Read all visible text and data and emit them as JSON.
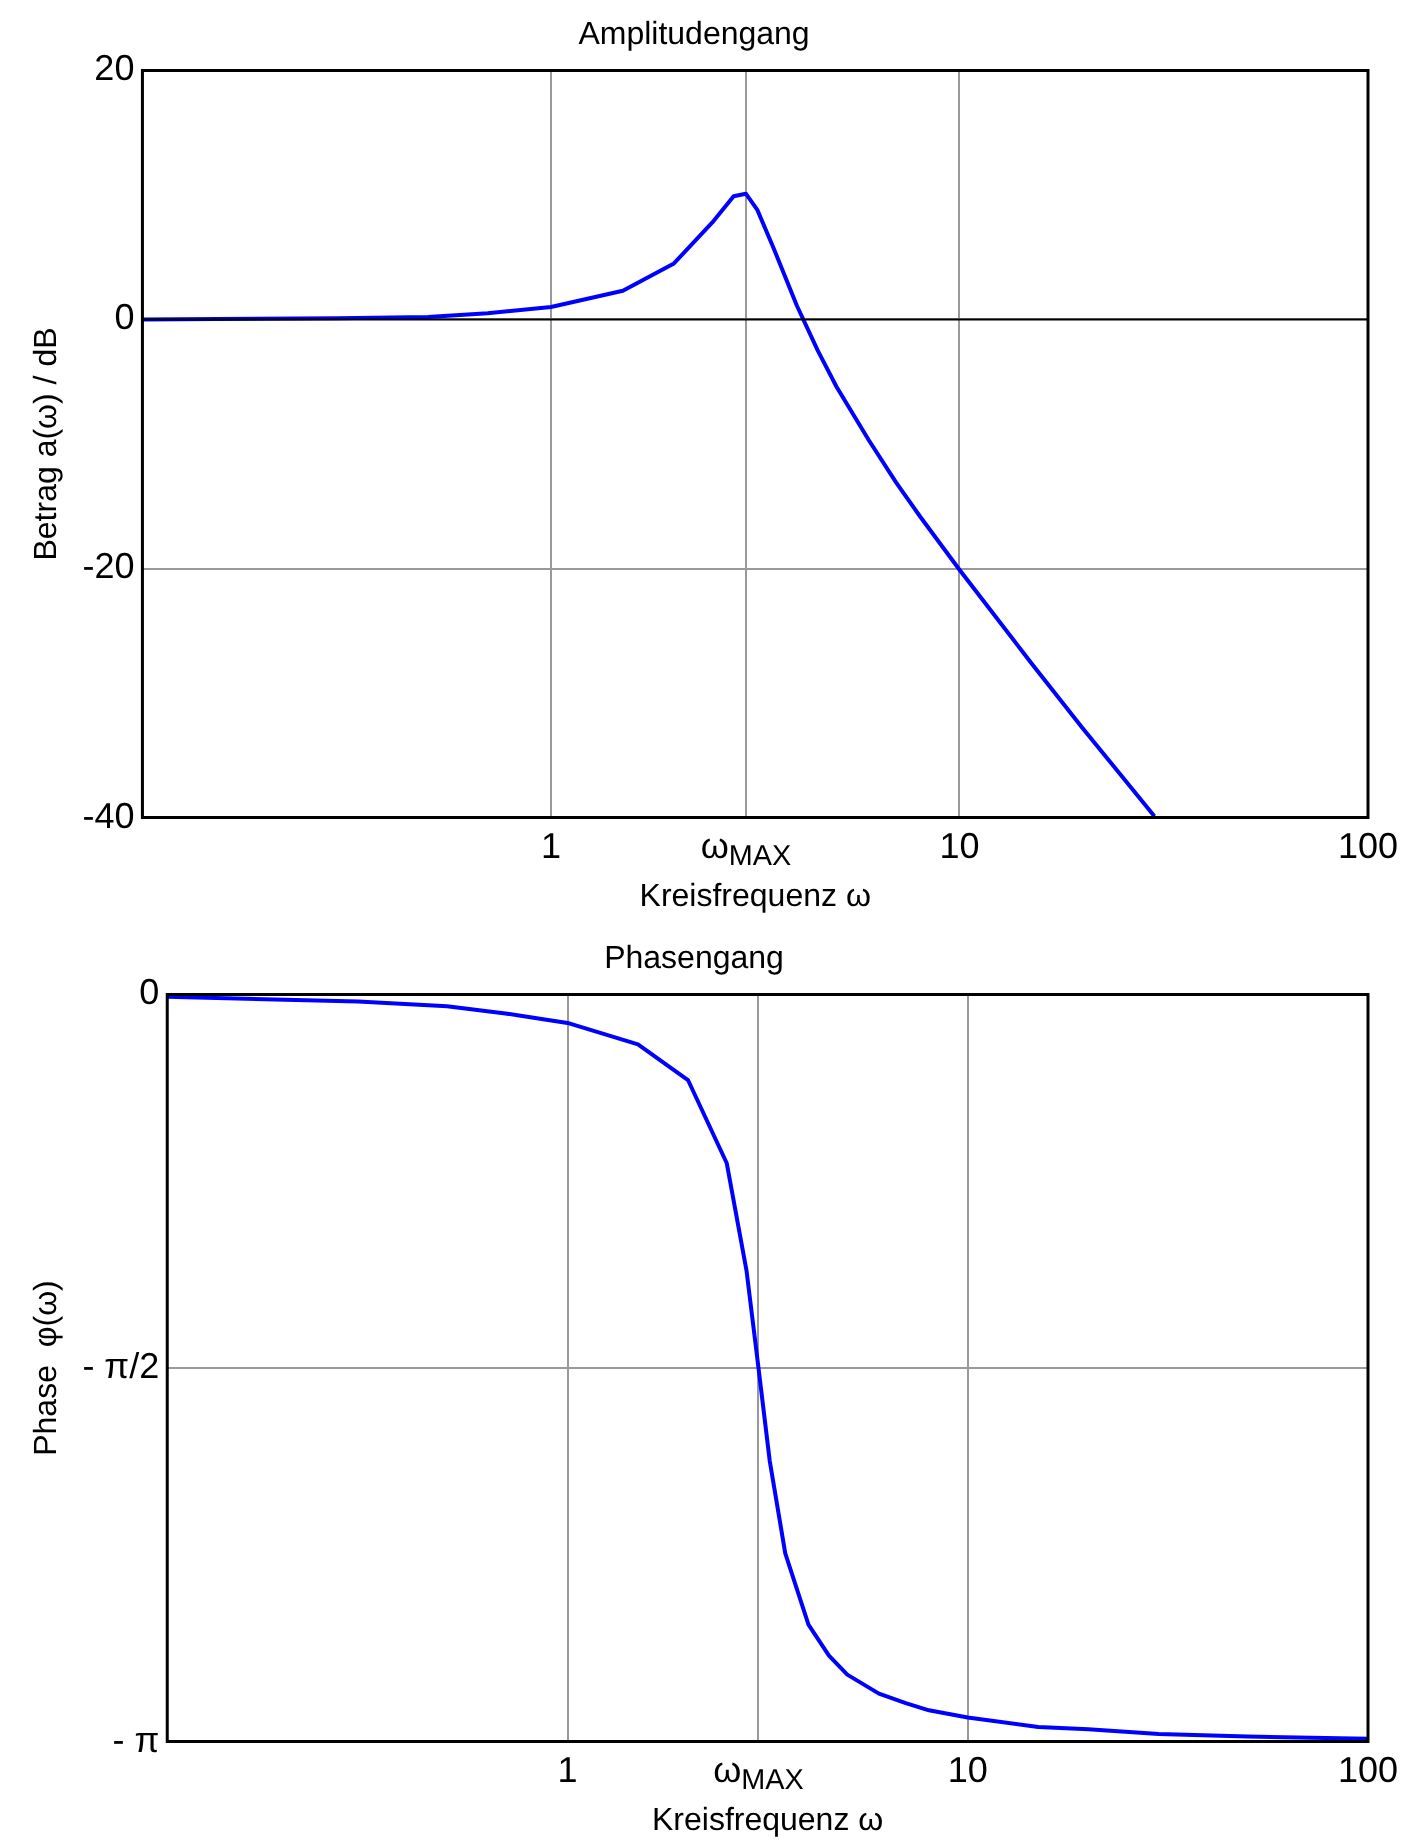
{
  "chart_data": [
    {
      "type": "line",
      "title": "Amplitudengang",
      "xlabel": "Kreisfrequenz ω",
      "ylabel": "Betrag a(ω) / dB",
      "log": "x",
      "grid": true,
      "marker": "none",
      "line_style": "solid",
      "xlim": [
        0.1,
        100
      ],
      "xticks": [
        1,
        {
          "value": 3,
          "label": "ω$_{MAX}$"
        },
        10,
        100
      ],
      "ylim": [
        -40,
        20
      ],
      "yticks": [
        -40,
        -20,
        0,
        20
      ],
      "ref_lines": [
        {
          "axis": "y",
          "value": 0,
          "color": "#000000"
        }
      ],
      "series": [
        {
          "color": "#0000ff",
          "x": [
            0.1,
            0.3,
            0.5,
            0.7,
            1,
            1.5,
            2,
            2.5,
            2.8,
            3,
            3.2,
            3.5,
            4,
            4.5,
            5,
            6,
            7,
            8,
            10,
            15,
            20,
            25,
            30
          ],
          "values": [
            0,
            0.1,
            0.2,
            0.5,
            1.0,
            2.3,
            4.5,
            7.9,
            9.9,
            10.1,
            8.8,
            5.8,
            1.1,
            -2.5,
            -5.4,
            -9.7,
            -13.1,
            -15.8,
            -20.1,
            -27.6,
            -32.8,
            -36.7,
            -39.9
          ]
        }
      ]
    },
    {
      "type": "line",
      "title": "Phasengang",
      "xlabel": "Kreisfrequenz ω",
      "ylabel": "Phase  φ(ω)",
      "log": "x",
      "grid": true,
      "marker": "none",
      "line_style": "solid",
      "xlim": [
        0.1,
        100
      ],
      "xticks": [
        1,
        {
          "value": 3,
          "label": "ω$_{MAX}$"
        },
        10,
        100
      ],
      "ylim": [
        -3.1416,
        0
      ],
      "yticks": [
        {
          "value": -3.1416,
          "label": "- π"
        },
        {
          "value": -1.5708,
          "label": "- π/2"
        },
        0
      ],
      "series": [
        {
          "color": "#0000ff",
          "x": [
            0.1,
            0.3,
            0.5,
            0.7,
            1,
            1.5,
            2,
            2.5,
            2.8,
            3,
            3.2,
            3.5,
            4,
            4.5,
            5,
            6,
            7,
            8,
            10,
            15,
            20,
            30,
            50,
            100
          ],
          "values": [
            -0.01,
            -0.03,
            -0.05,
            -0.08,
            -0.12,
            -0.21,
            -0.36,
            -0.71,
            -1.16,
            -1.57,
            -1.96,
            -2.35,
            -2.65,
            -2.78,
            -2.86,
            -2.94,
            -2.98,
            -3.01,
            -3.04,
            -3.08,
            -3.09,
            -3.11,
            -3.12,
            -3.13
          ]
        }
      ]
    }
  ]
}
